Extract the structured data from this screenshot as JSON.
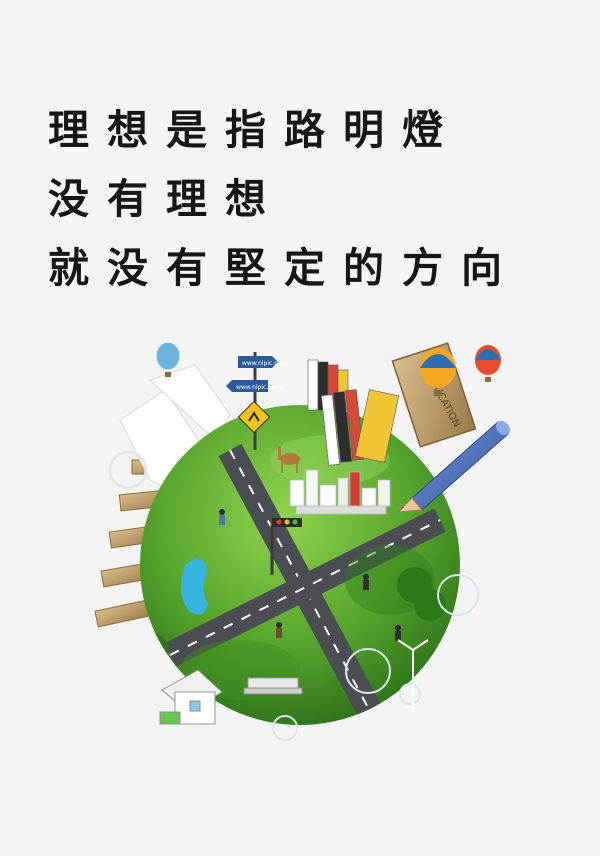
{
  "poster": {
    "lines": [
      "理想是指路明燈",
      "没有理想",
      "就没有堅定的方向"
    ]
  },
  "illustration": {
    "board_text": "EDUCATION",
    "sign_top": "www.nipic.com",
    "sign_bottom": "www.nipic.com"
  },
  "colors": {
    "background": "#f4f4f4",
    "text": "#161616",
    "grass_light": "#7fc843",
    "grass_dark": "#2f7f1b",
    "road": "#4a4d52",
    "pencil": "#4a6fb8"
  }
}
